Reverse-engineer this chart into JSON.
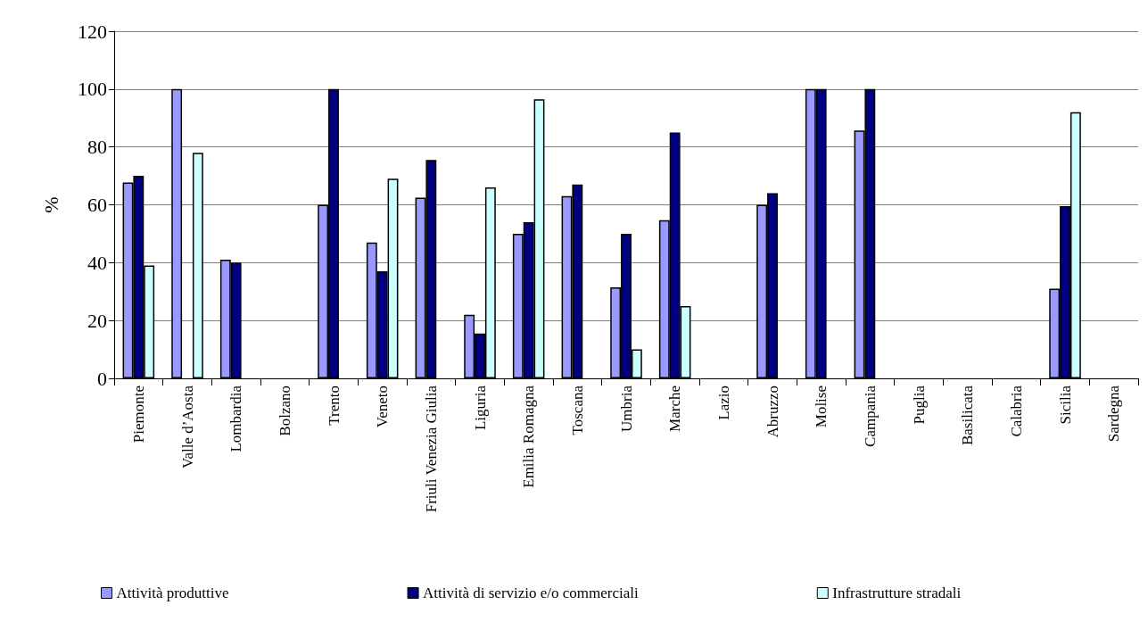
{
  "chart_data": {
    "type": "bar",
    "ylabel": "%",
    "categories": [
      "Piemonte",
      "Valle d’Aosta",
      "Lombardia",
      "Bolzano",
      "Trento",
      "Veneto",
      "Friuli Venezia Giulia",
      "Liguria",
      "Emilia Romagna",
      "Toscana",
      "Umbria",
      "Marche",
      "Lazio",
      "Abruzzo",
      "Molise",
      "Campania",
      "Puglia",
      "Basilicata",
      "Calabria",
      "Sicilia",
      "Sardegna"
    ],
    "series": [
      {
        "name": "Attività produttive",
        "color": "#9999ff",
        "values": [
          67.7,
          100,
          41,
          null,
          60,
          47,
          62.5,
          22,
          50,
          63,
          31.5,
          54.7,
          null,
          60,
          100,
          85.7,
          null,
          null,
          null,
          31,
          null
        ]
      },
      {
        "name": "Attività di servizio e/o commerciali",
        "color": "#000080",
        "values": [
          70,
          null,
          40,
          null,
          100,
          37,
          75.5,
          15.5,
          54,
          67,
          50,
          85,
          null,
          64,
          100,
          100,
          null,
          null,
          null,
          59.5,
          null
        ]
      },
      {
        "name": "Infrastrutture stradali",
        "color": "#ccffff",
        "values": [
          39,
          78,
          null,
          null,
          null,
          69,
          null,
          66,
          96.5,
          null,
          10,
          25,
          null,
          null,
          null,
          null,
          null,
          null,
          null,
          92,
          null
        ]
      }
    ],
    "ylim": [
      0,
      120
    ],
    "yticks": [
      0,
      20,
      40,
      60,
      80,
      100,
      120
    ],
    "grid": "y",
    "legend": "bottom"
  }
}
